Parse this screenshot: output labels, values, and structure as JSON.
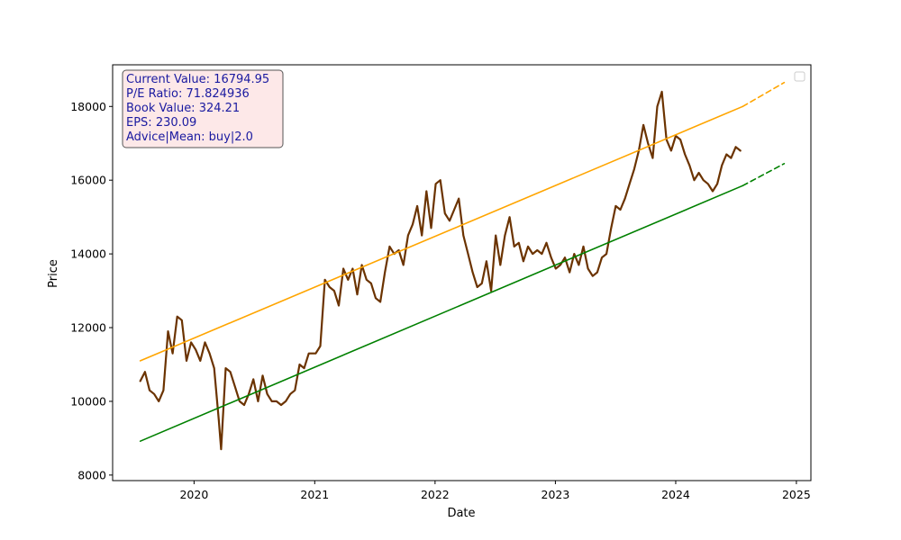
{
  "chart_data": {
    "type": "line",
    "xlabel": "Date",
    "ylabel": "Price",
    "x_axis": {
      "type": "date",
      "range": [
        "2019-04-29",
        "2025-02-14"
      ],
      "ticks": [
        "2020",
        "2021",
        "2022",
        "2023",
        "2024",
        "2025"
      ]
    },
    "y_axis": {
      "range": [
        7850,
        19130
      ],
      "ticks": [
        "8000",
        "10000",
        "12000",
        "14000",
        "16000",
        "18000"
      ]
    },
    "grid": false,
    "legend": {
      "placement": "top-right",
      "entries": []
    },
    "info_box": {
      "lines": [
        "Current Value: 16794.95",
        "P/E Ratio: 71.824936",
        "Book Value: 324.21",
        "EPS: 230.09",
        "Advice|Mean: buy|2.0"
      ],
      "text_color": "#1a1aa0",
      "background": "#fde8e8",
      "border_color": "#555555",
      "placement": "top-left"
    },
    "series": [
      {
        "role": "price",
        "color": "#6b3300",
        "style": "solid",
        "points": [
          [
            "2019-07-22",
            10550
          ],
          [
            "2019-08-05",
            10800
          ],
          [
            "2019-08-19",
            10300
          ],
          [
            "2019-09-02",
            10200
          ],
          [
            "2019-09-16",
            10000
          ],
          [
            "2019-09-30",
            10300
          ],
          [
            "2019-10-14",
            11900
          ],
          [
            "2019-10-28",
            11300
          ],
          [
            "2019-11-11",
            12300
          ],
          [
            "2019-11-25",
            12200
          ],
          [
            "2019-12-09",
            11100
          ],
          [
            "2019-12-23",
            11600
          ],
          [
            "2020-01-06",
            11400
          ],
          [
            "2020-01-20",
            11100
          ],
          [
            "2020-02-03",
            11600
          ],
          [
            "2020-02-17",
            11300
          ],
          [
            "2020-03-02",
            10900
          ],
          [
            "2020-03-16",
            9500
          ],
          [
            "2020-03-23",
            8700
          ],
          [
            "2020-04-06",
            10900
          ],
          [
            "2020-04-20",
            10800
          ],
          [
            "2020-05-04",
            10400
          ],
          [
            "2020-05-18",
            10000
          ],
          [
            "2020-06-01",
            9900
          ],
          [
            "2020-06-15",
            10200
          ],
          [
            "2020-06-29",
            10600
          ],
          [
            "2020-07-13",
            10000
          ],
          [
            "2020-07-27",
            10700
          ],
          [
            "2020-08-10",
            10200
          ],
          [
            "2020-08-24",
            10000
          ],
          [
            "2020-09-07",
            10000
          ],
          [
            "2020-09-21",
            9900
          ],
          [
            "2020-10-05",
            10000
          ],
          [
            "2020-10-19",
            10200
          ],
          [
            "2020-11-02",
            10300
          ],
          [
            "2020-11-16",
            11000
          ],
          [
            "2020-11-30",
            10900
          ],
          [
            "2020-12-14",
            11300
          ],
          [
            "2021-01-04",
            11300
          ],
          [
            "2021-01-18",
            11500
          ],
          [
            "2021-02-01",
            13300
          ],
          [
            "2021-02-15",
            13100
          ],
          [
            "2021-03-01",
            13000
          ],
          [
            "2021-03-15",
            12600
          ],
          [
            "2021-03-29",
            13600
          ],
          [
            "2021-04-12",
            13300
          ],
          [
            "2021-04-26",
            13600
          ],
          [
            "2021-05-10",
            12900
          ],
          [
            "2021-05-24",
            13700
          ],
          [
            "2021-06-07",
            13300
          ],
          [
            "2021-06-21",
            13200
          ],
          [
            "2021-07-05",
            12800
          ],
          [
            "2021-07-19",
            12700
          ],
          [
            "2021-08-02",
            13500
          ],
          [
            "2021-08-16",
            14200
          ],
          [
            "2021-08-30",
            14000
          ],
          [
            "2021-09-13",
            14100
          ],
          [
            "2021-09-27",
            13700
          ],
          [
            "2021-10-11",
            14500
          ],
          [
            "2021-10-25",
            14800
          ],
          [
            "2021-11-08",
            15300
          ],
          [
            "2021-11-22",
            14500
          ],
          [
            "2021-12-06",
            15700
          ],
          [
            "2021-12-20",
            14700
          ],
          [
            "2022-01-03",
            15900
          ],
          [
            "2022-01-17",
            16000
          ],
          [
            "2022-01-31",
            15100
          ],
          [
            "2022-02-14",
            14900
          ],
          [
            "2022-02-28",
            15200
          ],
          [
            "2022-03-14",
            15500
          ],
          [
            "2022-03-28",
            14500
          ],
          [
            "2022-04-11",
            14000
          ],
          [
            "2022-04-25",
            13500
          ],
          [
            "2022-05-09",
            13100
          ],
          [
            "2022-05-23",
            13200
          ],
          [
            "2022-06-06",
            13800
          ],
          [
            "2022-06-20",
            13000
          ],
          [
            "2022-07-04",
            14500
          ],
          [
            "2022-07-18",
            13700
          ],
          [
            "2022-08-01",
            14500
          ],
          [
            "2022-08-15",
            15000
          ],
          [
            "2022-08-29",
            14200
          ],
          [
            "2022-09-12",
            14300
          ],
          [
            "2022-09-26",
            13800
          ],
          [
            "2022-10-10",
            14200
          ],
          [
            "2022-10-24",
            14000
          ],
          [
            "2022-11-07",
            14100
          ],
          [
            "2022-11-21",
            14000
          ],
          [
            "2022-12-05",
            14300
          ],
          [
            "2022-12-19",
            13900
          ],
          [
            "2023-01-02",
            13600
          ],
          [
            "2023-01-16",
            13700
          ],
          [
            "2023-01-30",
            13900
          ],
          [
            "2023-02-13",
            13500
          ],
          [
            "2023-02-27",
            14000
          ],
          [
            "2023-03-13",
            13700
          ],
          [
            "2023-03-27",
            14200
          ],
          [
            "2023-04-10",
            13600
          ],
          [
            "2023-04-24",
            13400
          ],
          [
            "2023-05-08",
            13500
          ],
          [
            "2023-05-22",
            13900
          ],
          [
            "2023-06-05",
            14000
          ],
          [
            "2023-06-19",
            14700
          ],
          [
            "2023-07-03",
            15300
          ],
          [
            "2023-07-17",
            15200
          ],
          [
            "2023-07-31",
            15500
          ],
          [
            "2023-08-14",
            15900
          ],
          [
            "2023-08-28",
            16300
          ],
          [
            "2023-09-11",
            16800
          ],
          [
            "2023-09-25",
            17500
          ],
          [
            "2023-10-09",
            17000
          ],
          [
            "2023-10-23",
            16600
          ],
          [
            "2023-11-06",
            18000
          ],
          [
            "2023-11-20",
            18400
          ],
          [
            "2023-12-04",
            17100
          ],
          [
            "2023-12-18",
            16800
          ],
          [
            "2024-01-01",
            17200
          ],
          [
            "2024-01-15",
            17100
          ],
          [
            "2024-01-29",
            16700
          ],
          [
            "2024-02-12",
            16400
          ],
          [
            "2024-02-26",
            16000
          ],
          [
            "2024-03-11",
            16200
          ],
          [
            "2024-03-25",
            16000
          ],
          [
            "2024-04-08",
            15900
          ],
          [
            "2024-04-22",
            15700
          ],
          [
            "2024-05-06",
            15900
          ],
          [
            "2024-05-20",
            16400
          ],
          [
            "2024-06-03",
            16700
          ],
          [
            "2024-06-17",
            16600
          ],
          [
            "2024-07-01",
            16900
          ],
          [
            "2024-07-15",
            16800
          ]
        ]
      },
      {
        "role": "upper-trend",
        "color": "#ffa500",
        "style": "solid",
        "points": [
          [
            "2019-07-22",
            11100
          ],
          [
            "2024-07-22",
            18000
          ]
        ]
      },
      {
        "role": "upper-trend-forecast",
        "color": "#ffa500",
        "style": "dashed",
        "points": [
          [
            "2024-07-22",
            18000
          ],
          [
            "2024-11-25",
            18650
          ]
        ]
      },
      {
        "role": "lower-trend",
        "color": "#008000",
        "style": "solid",
        "points": [
          [
            "2019-07-22",
            8920
          ],
          [
            "2024-07-22",
            15850
          ]
        ]
      },
      {
        "role": "lower-trend-forecast",
        "color": "#008000",
        "style": "dashed",
        "points": [
          [
            "2024-07-22",
            15850
          ],
          [
            "2024-11-25",
            16450
          ]
        ]
      }
    ]
  }
}
